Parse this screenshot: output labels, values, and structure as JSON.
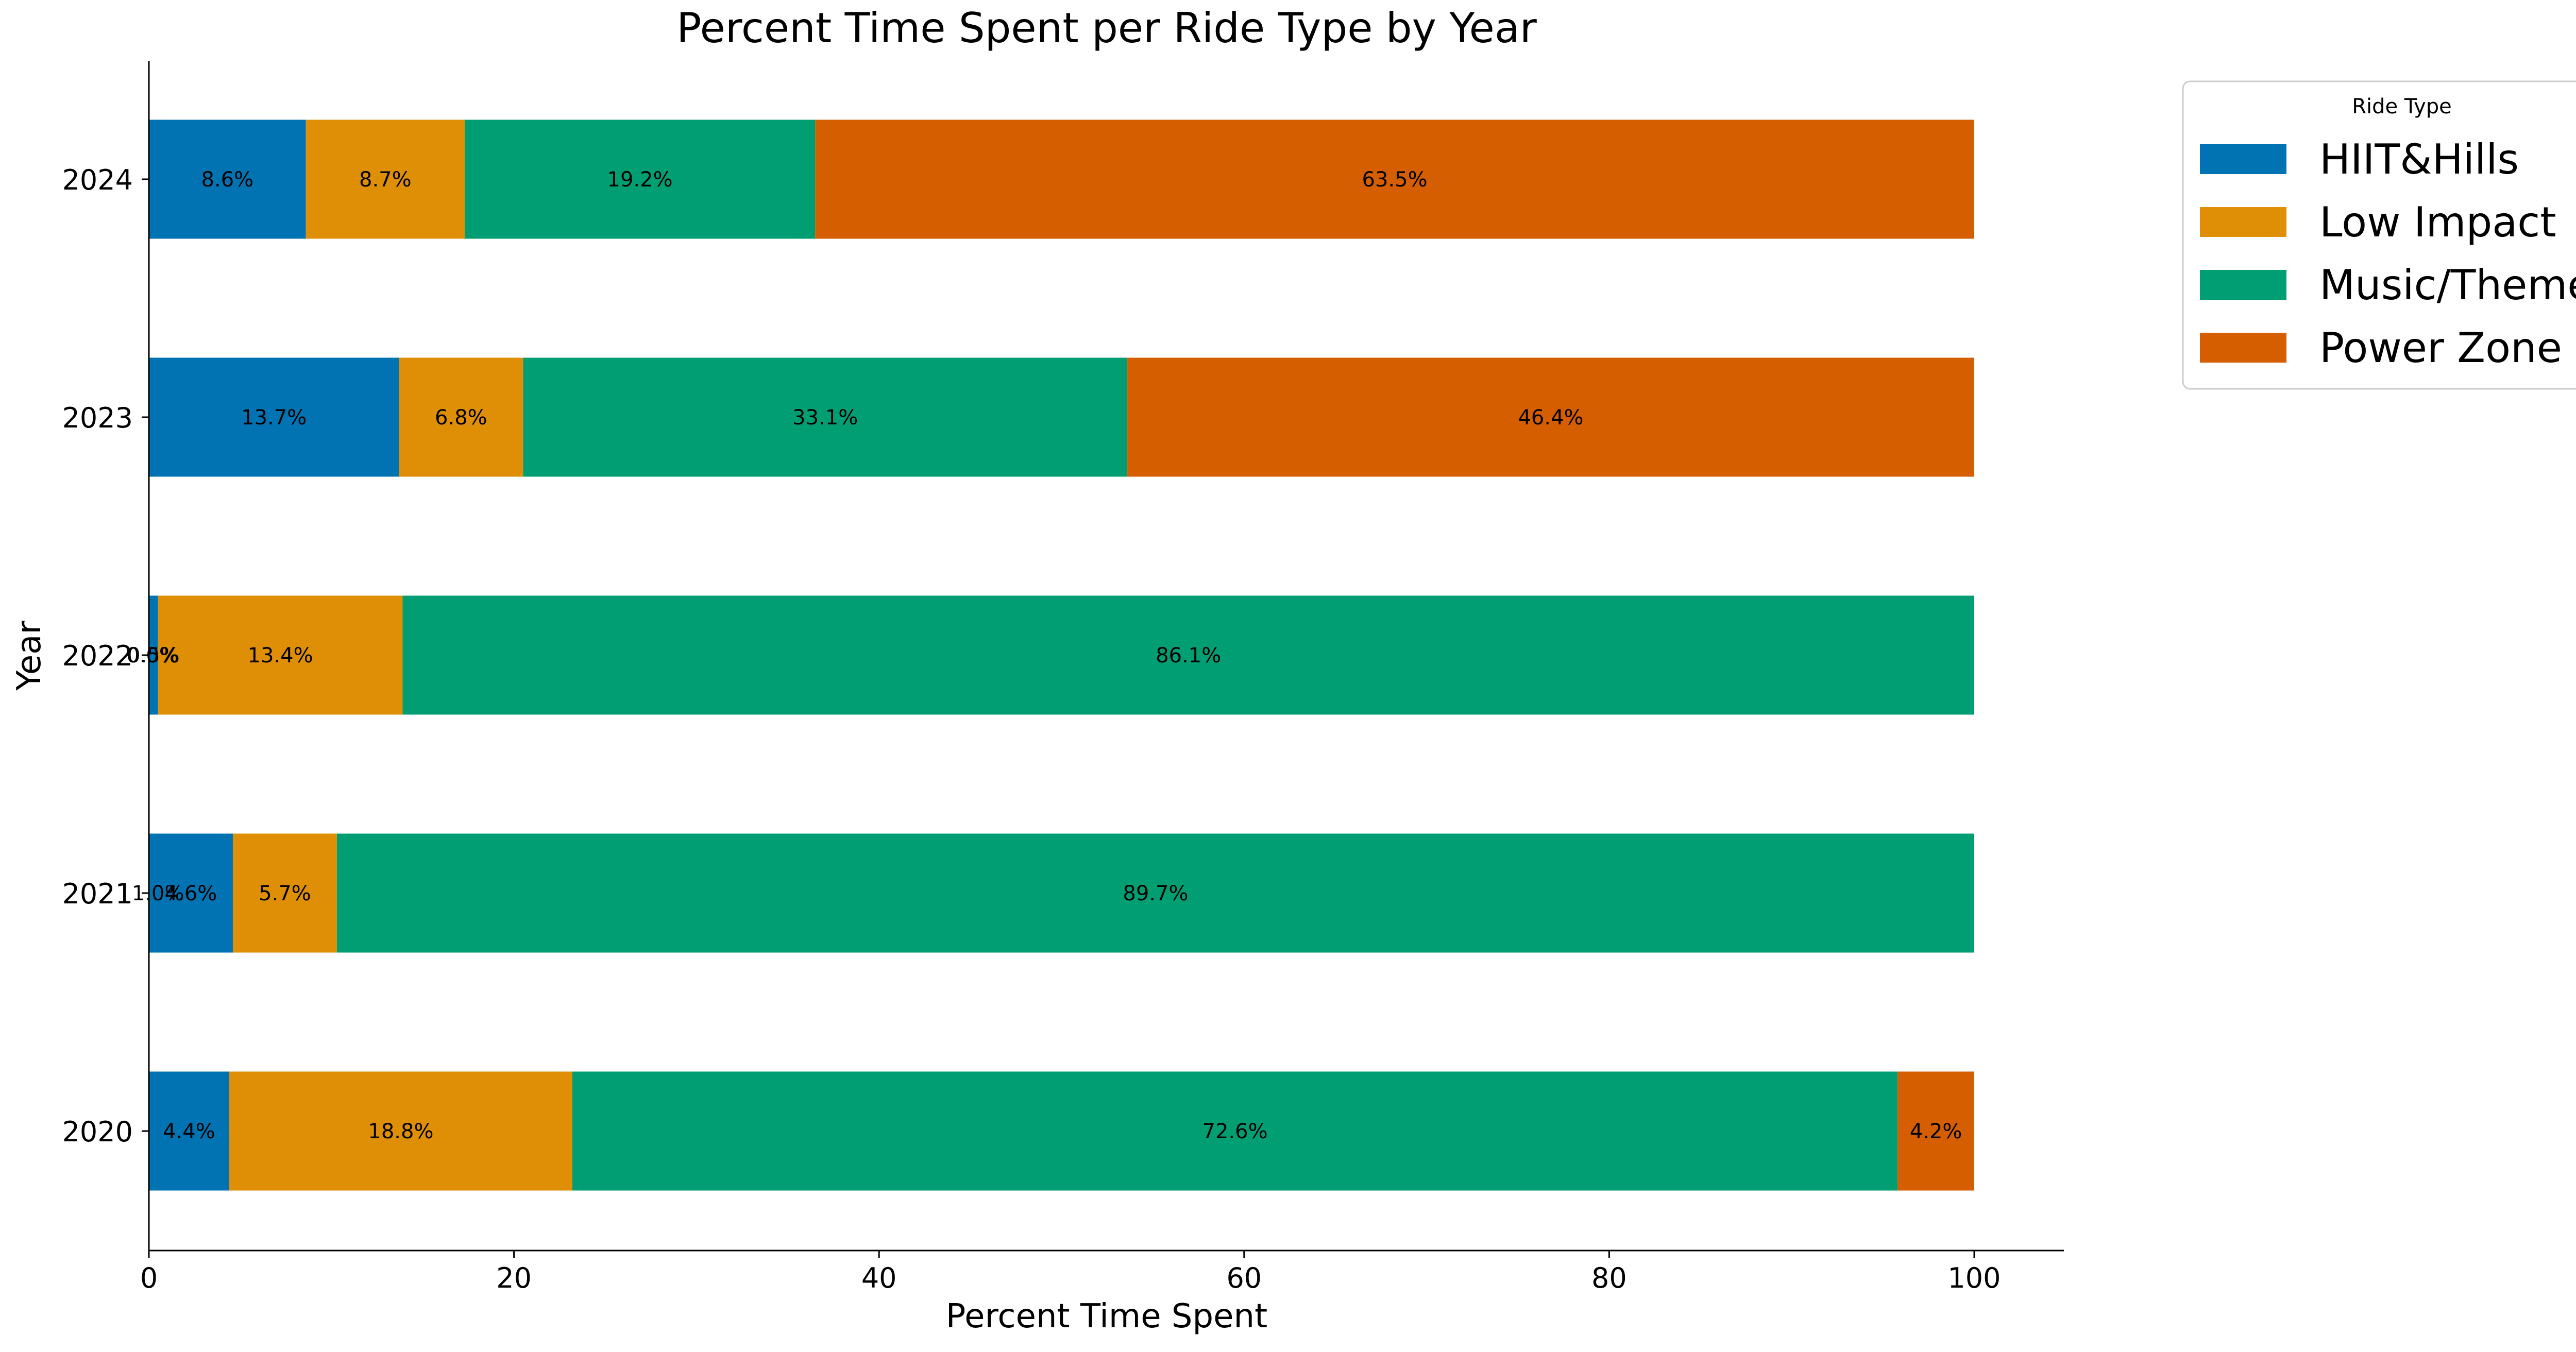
{
  "chart_data": {
    "type": "bar",
    "orientation": "horizontal",
    "stacked": true,
    "title": "Percent Time Spent per Ride Type by Year",
    "xlabel": "Percent Time Spent",
    "ylabel": "Year",
    "xlim": [
      0,
      105
    ],
    "xticks": [
      0,
      20,
      40,
      60,
      80,
      100
    ],
    "categories": [
      "2020",
      "2021",
      "2022",
      "2023",
      "2024"
    ],
    "legend": {
      "title": "Ride Type",
      "position": "outside-top-right"
    },
    "grid": false,
    "series": [
      {
        "name": "HIIT&Hills",
        "color": "#0173b2",
        "values": [
          4.4,
          4.6,
          0.5,
          13.7,
          8.6
        ],
        "labels": [
          "4.4%",
          "4.6%",
          "0.5%",
          "13.7%",
          "8.6%"
        ]
      },
      {
        "name": "Low Impact",
        "color": "#de8f05",
        "values": [
          18.8,
          5.7,
          13.4,
          6.8,
          8.7
        ],
        "labels": [
          "18.8%",
          "5.7%",
          "13.4%",
          "6.8%",
          "8.7%"
        ]
      },
      {
        "name": "Music/Theme",
        "color": "#029e73",
        "values": [
          72.6,
          89.7,
          86.1,
          33.1,
          19.2
        ],
        "labels": [
          "72.6%",
          "89.7%",
          "86.1%",
          "33.1%",
          "19.2%"
        ]
      },
      {
        "name": "Power Zone",
        "color": "#d55e00",
        "values": [
          4.2,
          0,
          0,
          46.4,
          63.5
        ],
        "labels": [
          "4.2%",
          "",
          "",
          "46.4%",
          "63.5%"
        ]
      }
    ],
    "extra_labels": [
      {
        "category": "2021",
        "x": 0.5,
        "text": "1.0%"
      },
      {
        "category": "2022",
        "x": 0.2,
        "text": "0.0%"
      }
    ]
  }
}
